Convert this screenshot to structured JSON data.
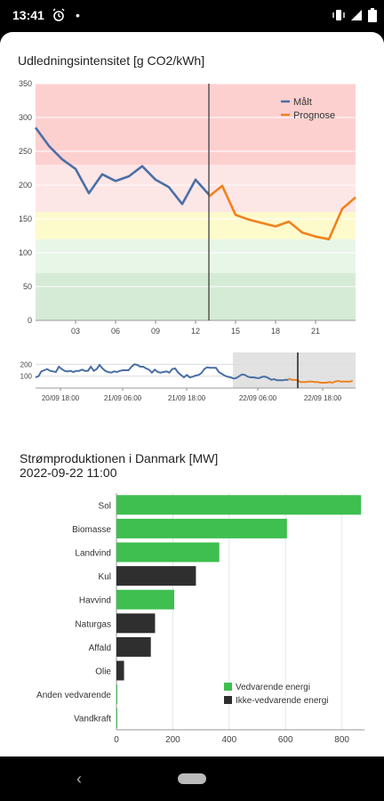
{
  "status_bar": {
    "time": "13:41"
  },
  "emission": {
    "title": "Udledningsintensitet [g CO2/kWh]",
    "legend": [
      "Målt",
      "Prognose"
    ],
    "colors": {
      "measured": "#4a6fa5",
      "forecast": "#f0821e"
    },
    "y_ticks": [
      "350",
      "300",
      "250",
      "200",
      "150",
      "100",
      "50",
      "0"
    ],
    "x_ticks": [
      "03",
      "06",
      "09",
      "12",
      "15",
      "18",
      "21"
    ],
    "overview_y_ticks": [
      "200",
      "100"
    ],
    "overview_x_ticks": [
      "20/09 18:00",
      "21/09 06:00",
      "21/09 18:00",
      "22/09 06:00",
      "22/09 18:00"
    ]
  },
  "production": {
    "title": "Strømproduktionen i Danmark [MW]",
    "subtitle": "2022-09-22 11:00",
    "legend": [
      "Vedvarende energi",
      "Ikke-vedvarende energi"
    ],
    "x_ticks": [
      "0",
      "200",
      "400",
      "600",
      "800"
    ]
  },
  "chart_data": [
    {
      "type": "line",
      "title": "Udledningsintensitet [g CO2/kWh]",
      "ylim": [
        0,
        350
      ],
      "grid": true,
      "legend_position": "top-right",
      "bands": [
        {
          "from": 230,
          "to": 350,
          "color": "#fdd0d0"
        },
        {
          "from": 160,
          "to": 230,
          "color": "#fde6e6"
        },
        {
          "from": 120,
          "to": 160,
          "color": "#fdfacc"
        },
        {
          "from": 70,
          "to": 120,
          "color": "#e8f6e8"
        },
        {
          "from": 0,
          "to": 70,
          "color": "#d5ebd5"
        }
      ],
      "x": [
        0,
        1,
        2,
        3,
        4,
        5,
        6,
        7,
        8,
        9,
        10,
        11,
        12,
        13,
        14,
        15,
        16,
        17,
        18,
        19,
        20,
        21,
        22,
        23,
        24
      ],
      "series": [
        {
          "name": "Målt",
          "values": [
            285,
            258,
            238,
            224,
            188,
            216,
            206,
            213,
            228,
            208,
            197,
            172,
            208,
            186,
            null,
            null,
            null,
            null,
            null,
            null,
            null,
            null,
            null,
            null,
            null
          ]
        },
        {
          "name": "Prognose",
          "values": [
            null,
            null,
            null,
            null,
            null,
            null,
            null,
            null,
            null,
            null,
            null,
            null,
            null,
            183,
            199,
            156,
            149,
            144,
            139,
            146,
            130,
            124,
            120,
            165,
            182
          ]
        }
      ]
    },
    {
      "type": "bar",
      "orientation": "horizontal",
      "title": "Strømproduktionen i Danmark [MW]",
      "xlim": [
        0,
        880
      ],
      "grid": true,
      "legend_position": "bottom-right",
      "categories": [
        "Sol",
        "Biomasse",
        "Landvind",
        "Kul",
        "Havvind",
        "Naturgas",
        "Affald",
        "Olie",
        "Anden vedvarende",
        "Vandkraft"
      ],
      "values": [
        868,
        605,
        365,
        282,
        205,
        137,
        122,
        27,
        1,
        1
      ],
      "renewable": [
        true,
        true,
        true,
        false,
        true,
        false,
        false,
        false,
        true,
        true
      ]
    }
  ]
}
